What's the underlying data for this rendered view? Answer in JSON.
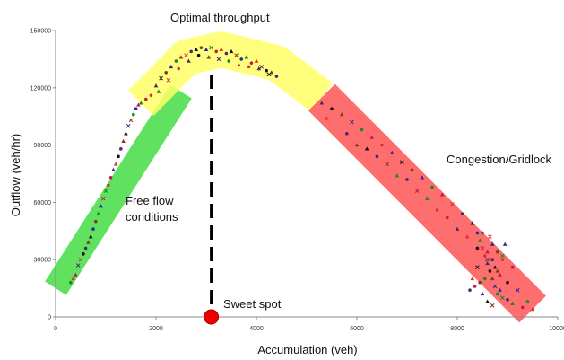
{
  "chart_data": {
    "type": "scatter",
    "title": "",
    "xlabel": "Accumulation (veh)",
    "ylabel": "Outflow (veh/hr)",
    "xlim": [
      0,
      10000
    ],
    "ylim": [
      0,
      150000
    ],
    "x_ticks": [
      "0",
      "2000",
      "4000",
      "6000",
      "8000",
      "10000"
    ],
    "y_ticks": [
      "0",
      "30000",
      "60000",
      "90000",
      "120000",
      "150000"
    ],
    "grid": false,
    "legend": "none",
    "regions": [
      {
        "label": "Free flow conditions",
        "color": "#44dd44",
        "path": [
          [
            0,
            15000
          ],
          [
            2500,
            118000
          ]
        ]
      },
      {
        "label": "Optimal throughput",
        "color": "#ffff66",
        "path": [
          [
            1700,
            112000
          ],
          [
            2600,
            136000
          ],
          [
            3300,
            140000
          ],
          [
            4400,
            133000
          ],
          [
            5300,
            115000
          ]
        ]
      },
      {
        "label": "Congestion/Gridlock",
        "color": "#ff5555",
        "path": [
          [
            5300,
            115000
          ],
          [
            9500,
            4000
          ]
        ]
      }
    ],
    "annotations": {
      "optimal": "Optimal throughput",
      "free_flow_line1": "Free flow",
      "free_flow_line2": "conditions",
      "congestion": "Congestion/Gridlock",
      "sweet_spot": "Sweet spot"
    },
    "sweet_spot": {
      "x": 3100,
      "y": 0,
      "color": "#ee0000"
    },
    "marker_colors": [
      "#1a8a1a",
      "#7a3e1a",
      "#4a2a6a",
      "#c41a4a",
      "#2a2a9a",
      "#111111",
      "#e03030"
    ],
    "series": [
      {
        "values": [
          [
            300,
            18000
          ],
          [
            400,
            22000
          ],
          [
            500,
            30000
          ],
          [
            600,
            36000
          ],
          [
            700,
            42000
          ],
          [
            800,
            50000
          ],
          [
            900,
            58000
          ],
          [
            1000,
            66000
          ],
          [
            1100,
            73000
          ],
          [
            1200,
            80000
          ],
          [
            1300,
            88000
          ],
          [
            1400,
            96000
          ],
          [
            1500,
            103000
          ],
          [
            1600,
            109000
          ],
          [
            1700,
            112000
          ],
          [
            1800,
            114000
          ],
          [
            350,
            20000
          ],
          [
            450,
            27000
          ],
          [
            550,
            33000
          ],
          [
            650,
            39000
          ],
          [
            750,
            46000
          ],
          [
            850,
            54000
          ],
          [
            950,
            62000
          ],
          [
            1050,
            69000
          ],
          [
            1150,
            77000
          ],
          [
            1250,
            84000
          ],
          [
            1350,
            92000
          ],
          [
            1450,
            100000
          ],
          [
            1550,
            106000
          ],
          [
            1650,
            111000
          ],
          [
            1900,
            116000
          ],
          [
            2000,
            121000
          ],
          [
            2100,
            125000
          ],
          [
            2200,
            128000
          ],
          [
            2300,
            131000
          ],
          [
            2400,
            134000
          ],
          [
            2500,
            136000
          ],
          [
            2600,
            137000
          ],
          [
            2700,
            139000
          ],
          [
            2800,
            140000
          ],
          [
            2900,
            141000
          ],
          [
            3000,
            140000
          ],
          [
            3100,
            141000
          ],
          [
            3200,
            139000
          ],
          [
            3300,
            140000
          ],
          [
            3400,
            138000
          ],
          [
            3500,
            139000
          ],
          [
            3600,
            137000
          ],
          [
            3700,
            135000
          ],
          [
            3800,
            136000
          ],
          [
            3900,
            133000
          ],
          [
            4000,
            134000
          ],
          [
            4100,
            131000
          ],
          [
            4200,
            129000
          ],
          [
            4300,
            128000
          ],
          [
            4400,
            126000
          ],
          [
            2050,
            118000
          ],
          [
            2250,
            124000
          ],
          [
            2450,
            130000
          ],
          [
            2650,
            134000
          ],
          [
            2850,
            137000
          ],
          [
            3050,
            136000
          ],
          [
            3250,
            135000
          ],
          [
            3450,
            134000
          ],
          [
            3650,
            132000
          ],
          [
            3850,
            131000
          ],
          [
            4050,
            130000
          ],
          [
            4250,
            127000
          ]
        ]
      },
      {
        "values": [
          [
            5300,
            112000
          ],
          [
            5500,
            109000
          ],
          [
            5700,
            106000
          ],
          [
            5900,
            102000
          ],
          [
            6100,
            98000
          ],
          [
            6300,
            94000
          ],
          [
            6500,
            90000
          ],
          [
            6700,
            86000
          ],
          [
            6900,
            81000
          ],
          [
            7100,
            77000
          ],
          [
            7300,
            73000
          ],
          [
            7500,
            68000
          ],
          [
            7700,
            64000
          ],
          [
            7900,
            59000
          ],
          [
            8100,
            54000
          ],
          [
            8300,
            49000
          ],
          [
            8500,
            44000
          ],
          [
            8700,
            38000
          ],
          [
            8900,
            32000
          ],
          [
            9100,
            26000
          ],
          [
            5400,
            104000
          ],
          [
            5800,
            96000
          ],
          [
            6200,
            88000
          ],
          [
            6600,
            80000
          ],
          [
            7000,
            72000
          ],
          [
            7400,
            62000
          ],
          [
            7800,
            52000
          ],
          [
            8200,
            42000
          ],
          [
            8600,
            30000
          ],
          [
            9000,
            18000
          ],
          [
            6000,
            90000
          ],
          [
            6400,
            84000
          ],
          [
            6800,
            74000
          ],
          [
            7200,
            66000
          ],
          [
            7600,
            56000
          ],
          [
            8000,
            46000
          ],
          [
            8400,
            36000
          ],
          [
            8800,
            24000
          ],
          [
            9200,
            14000
          ],
          [
            9400,
            8000
          ]
        ]
      },
      {
        "values": [
          [
            8400,
            44000
          ],
          [
            8450,
            40000
          ],
          [
            8500,
            36000
          ],
          [
            8550,
            32000
          ],
          [
            8600,
            28000
          ],
          [
            8650,
            24000
          ],
          [
            8700,
            20000
          ],
          [
            8750,
            16000
          ],
          [
            8800,
            12000
          ],
          [
            8850,
            22000
          ],
          [
            8900,
            30000
          ],
          [
            8950,
            38000
          ],
          [
            8400,
            26000
          ],
          [
            8450,
            18000
          ],
          [
            8500,
            12000
          ],
          [
            8550,
            20000
          ],
          [
            8600,
            34000
          ],
          [
            8650,
            42000
          ],
          [
            8700,
            30000
          ],
          [
            8750,
            26000
          ],
          [
            8800,
            34000
          ],
          [
            8850,
            14000
          ],
          [
            8900,
            10000
          ],
          [
            8350,
            16000
          ],
          [
            8300,
            20000
          ],
          [
            8250,
            14000
          ],
          [
            8600,
            8000
          ],
          [
            8700,
            6000
          ],
          [
            9000,
            9000
          ],
          [
            9100,
            7000
          ],
          [
            9300,
            5000
          ],
          [
            9500,
            4000
          ]
        ]
      }
    ]
  }
}
